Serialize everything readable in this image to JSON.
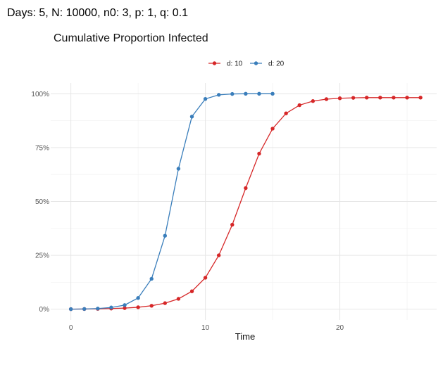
{
  "header": {
    "title": "Days: 5, N: 10000, n0: 3, p: 1, q: 0.1"
  },
  "chart_data": {
    "type": "line",
    "title": "Cumulative Proportion Infected",
    "xlabel": "Time",
    "ylabel": "",
    "xlim": [
      -1.5,
      27.2
    ],
    "ylim": [
      -0.05,
      1.05
    ],
    "xticks": [
      0,
      10,
      20
    ],
    "xtick_labels": [
      "0",
      "10",
      "20"
    ],
    "yticks": [
      0,
      0.25,
      0.5,
      0.75,
      1.0
    ],
    "ytick_labels": [
      "0%",
      "25%",
      "50%",
      "75%",
      "100%"
    ],
    "grid": true,
    "legend_position": "top",
    "series": [
      {
        "name": "d: 10",
        "color": "#d62728",
        "x": [
          0,
          1,
          2,
          3,
          4,
          5,
          6,
          7,
          8,
          9,
          10,
          11,
          12,
          13,
          14,
          15,
          16,
          17,
          18,
          19,
          20,
          21,
          22,
          23,
          24,
          25,
          26
        ],
        "y": [
          0.0003,
          0.0008,
          0.0015,
          0.003,
          0.005,
          0.009,
          0.016,
          0.028,
          0.048,
          0.083,
          0.146,
          0.25,
          0.392,
          0.562,
          0.722,
          0.838,
          0.909,
          0.947,
          0.966,
          0.975,
          0.979,
          0.981,
          0.982,
          0.982,
          0.982,
          0.982,
          0.982
        ]
      },
      {
        "name": "d: 20",
        "color": "#3a7ebb",
        "x": [
          0,
          1,
          2,
          3,
          4,
          5,
          6,
          7,
          8,
          9,
          10,
          11,
          12,
          13,
          14,
          15
        ],
        "y": [
          0.0003,
          0.001,
          0.003,
          0.008,
          0.019,
          0.052,
          0.141,
          0.341,
          0.652,
          0.894,
          0.976,
          0.995,
          0.999,
          1.0,
          1.0,
          1.0
        ]
      }
    ]
  }
}
